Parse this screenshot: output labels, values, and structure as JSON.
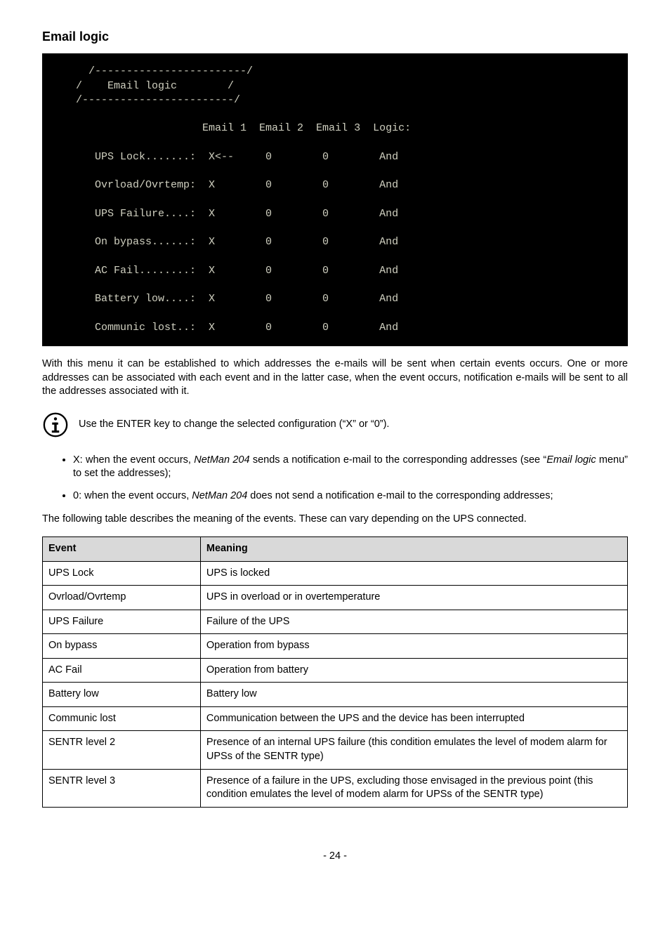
{
  "heading": "Email logic",
  "terminal": {
    "title": "    Email logic",
    "border_top": "  /------------------------/",
    "border_mid": " /                         /",
    "border_bottom": "/------------------------/",
    "header": {
      "c1": "Email 1",
      "c2": "Email 2",
      "c3": "Email 3",
      "c4": "Logic:"
    },
    "rows": [
      {
        "label": "UPS Lock.......:",
        "c1": "X<--",
        "c2": "0",
        "c3": "0",
        "c4": "And"
      },
      {
        "label": "Ovrload/Ovrtemp:",
        "c1": "X",
        "c2": "0",
        "c3": "0",
        "c4": "And"
      },
      {
        "label": "UPS Failure....:",
        "c1": "X",
        "c2": "0",
        "c3": "0",
        "c4": "And"
      },
      {
        "label": "On bypass......:",
        "c1": "X",
        "c2": "0",
        "c3": "0",
        "c4": "And"
      },
      {
        "label": "AC Fail........:",
        "c1": "X",
        "c2": "0",
        "c3": "0",
        "c4": "And"
      },
      {
        "label": "Battery low....:",
        "c1": "X",
        "c2": "0",
        "c3": "0",
        "c4": "And"
      },
      {
        "label": "Communic lost..:",
        "c1": "X",
        "c2": "0",
        "c3": "0",
        "c4": "And"
      }
    ]
  },
  "paragraph1": "With this menu it can be established to which addresses the e-mails will be sent when certain events occurs. One or more addresses can be associated with each event and in the latter case, when the event occurs, notification e-mails will be sent to all the addresses associated with it.",
  "info_note": "Use the ENTER key to change the selected configuration (“X” or “0”).",
  "bullets": [
    {
      "prefix": "X: when the event occurs, ",
      "italic1": "NetMan 204",
      "mid": " sends a notification e-mail to the corresponding addresses (see “",
      "italic2": "Email logic",
      "suffix": " menu” to set the addresses);"
    },
    {
      "prefix": "0: when the event occurs, ",
      "italic1": "NetMan 204",
      "mid": " does not send a notification e-mail to the corresponding addresses;",
      "italic2": "",
      "suffix": ""
    }
  ],
  "paragraph2": "The following table describes the meaning of the events. These can vary depending on the UPS connected.",
  "table": {
    "col1_header": "Event",
    "col2_header": "Meaning",
    "rows": [
      {
        "event": "UPS Lock",
        "meaning": "UPS is locked"
      },
      {
        "event": "Ovrload/Ovrtemp",
        "meaning": "UPS in overload or in overtemperature"
      },
      {
        "event": "UPS Failure",
        "meaning": "Failure of the UPS"
      },
      {
        "event": "On bypass",
        "meaning": "Operation from bypass"
      },
      {
        "event": "AC Fail",
        "meaning": "Operation from battery"
      },
      {
        "event": "Battery low",
        "meaning": "Battery low"
      },
      {
        "event": "Communic lost",
        "meaning": "Communication between the UPS and the device has been interrupted"
      },
      {
        "event": "SENTR level 2",
        "meaning": "Presence of an internal UPS failure (this condition emulates the level of modem alarm for UPSs of the SENTR type)"
      },
      {
        "event": "SENTR level 3",
        "meaning": "Presence of a failure in the UPS, excluding those envisaged in the previous point (this condition emulates the level of modem alarm for UPSs of the SENTR type)"
      }
    ]
  },
  "page_number": "- 24 -",
  "colors": {
    "terminal_bg": "#000000",
    "terminal_fg": "#d0d0c0",
    "table_header_bg": "#d9d9d9",
    "border": "#000000"
  }
}
